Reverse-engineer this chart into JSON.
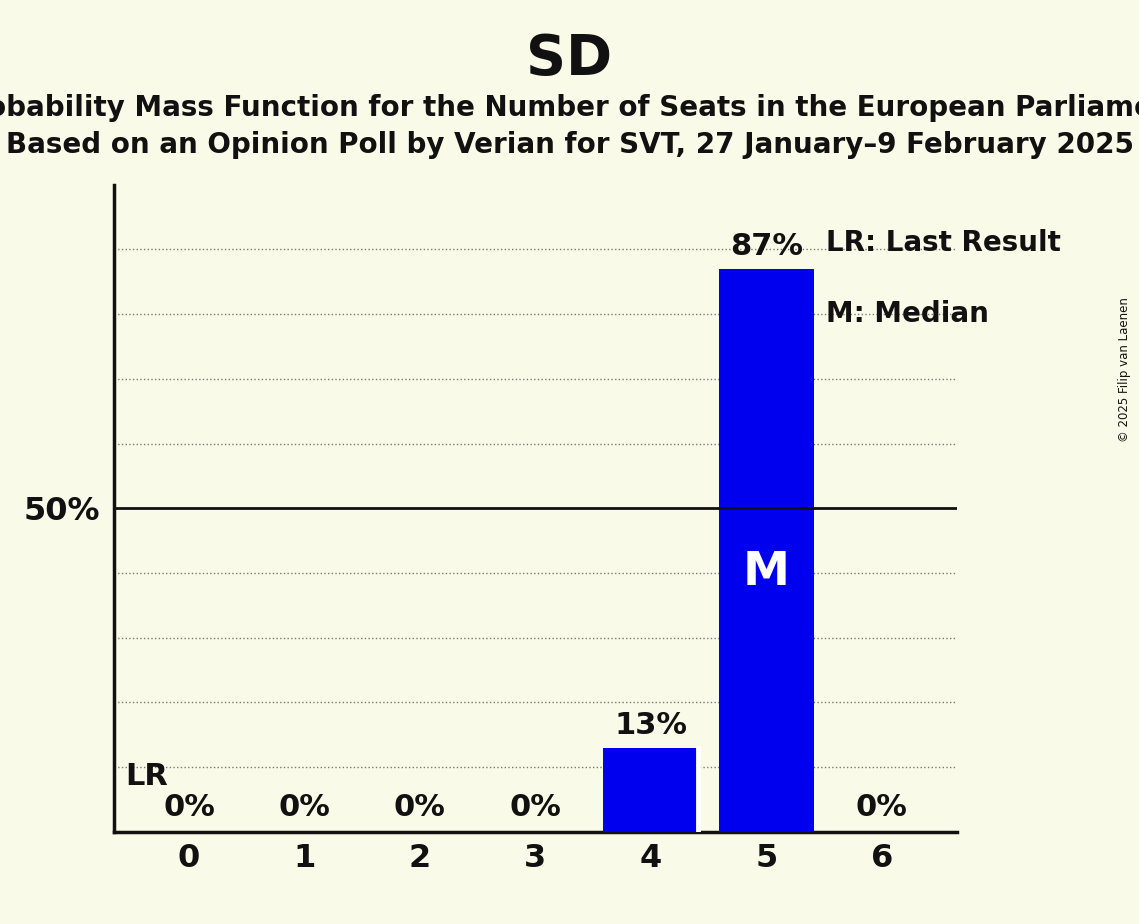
{
  "title": "SD",
  "subtitle1": "Probability Mass Function for the Number of Seats in the European Parliament",
  "subtitle2": "Based on an Opinion Poll by Verian for SVT, 27 January–9 February 2025",
  "copyright": "© 2025 Filip van Laenen",
  "categories": [
    0,
    1,
    2,
    3,
    4,
    5,
    6
  ],
  "values": [
    0,
    0,
    0,
    0,
    13,
    87,
    0
  ],
  "bar_color": "#0000EE",
  "background_color": "#FAFAE8",
  "text_color": "#111111",
  "fifty_pct_line_color": "#111111",
  "grid_color": "#444444",
  "median_seat": 5,
  "last_result_seat": 4,
  "ylim": [
    0,
    100
  ],
  "bar_label_fontsize": 22,
  "title_fontsize": 40,
  "subtitle_fontsize": 20,
  "axis_tick_fontsize": 23,
  "legend_fontsize": 20,
  "median_label": "M",
  "lr_label": "LR",
  "legend_lr": "LR: Last Result",
  "legend_m": "M: Median",
  "bar_width": 0.82
}
